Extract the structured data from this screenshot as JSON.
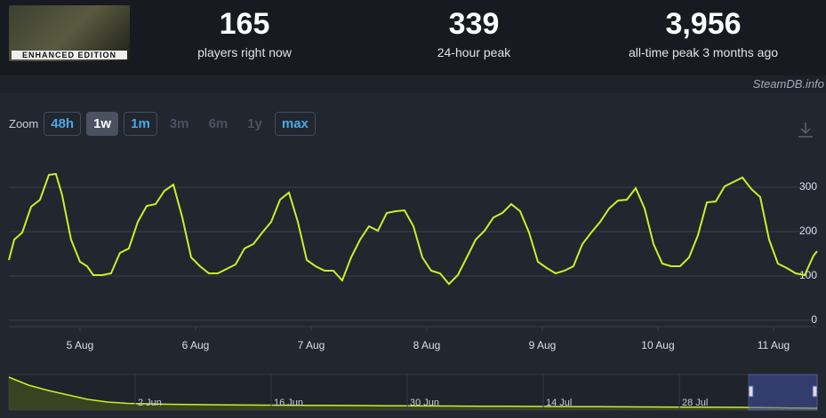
{
  "header": {
    "logo_text": "ENHANCED EDITION",
    "stats": [
      {
        "value": "165",
        "label": "players right now"
      },
      {
        "value": "339",
        "label": "24-hour peak"
      },
      {
        "value": "3,956",
        "label": "all-time peak 3 months ago"
      }
    ]
  },
  "watermark": "SteamDB.info",
  "zoom": {
    "label": "Zoom",
    "buttons": [
      "48h",
      "1w",
      "1m",
      "3m",
      "6m",
      "1y",
      "max"
    ]
  },
  "chart_data": {
    "type": "line",
    "color": "#c6f12a",
    "grid": true,
    "x": [
      4.385,
      4.431,
      4.5,
      4.577,
      4.654,
      4.731,
      4.792,
      4.846,
      4.923,
      5.0,
      5.062,
      5.115,
      5.192,
      5.269,
      5.346,
      5.423,
      5.5,
      5.577,
      5.654,
      5.731,
      5.808,
      5.885,
      5.962,
      6.038,
      6.115,
      6.192,
      6.269,
      6.346,
      6.423,
      6.5,
      6.577,
      6.654,
      6.731,
      6.808,
      6.885,
      6.962,
      7.038,
      7.115,
      7.192,
      7.269,
      7.346,
      7.423,
      7.5,
      7.577,
      7.654,
      7.731,
      7.808,
      7.885,
      7.962,
      8.038,
      8.115,
      8.192,
      8.269,
      8.346,
      8.423,
      8.5,
      8.577,
      8.654,
      8.731,
      8.808,
      8.885,
      8.962,
      9.038,
      9.115,
      9.192,
      9.269,
      9.346,
      9.423,
      9.5,
      9.577,
      9.654,
      9.731,
      9.808,
      9.885,
      9.962,
      10.038,
      10.115,
      10.192,
      10.269,
      10.346,
      10.423,
      10.5,
      10.577,
      10.654,
      10.731,
      10.808,
      10.885,
      10.962,
      11.038,
      11.115,
      11.192,
      11.269,
      11.346,
      11.377
    ],
    "values": [
      136,
      182,
      198,
      256,
      272,
      328,
      330,
      282,
      182,
      132,
      122,
      102,
      102,
      106,
      152,
      162,
      222,
      258,
      262,
      292,
      306,
      232,
      142,
      122,
      106,
      106,
      116,
      126,
      162,
      172,
      198,
      222,
      272,
      288,
      222,
      136,
      122,
      112,
      112,
      90,
      142,
      182,
      212,
      202,
      242,
      246,
      248,
      212,
      142,
      112,
      106,
      82,
      102,
      142,
      182,
      202,
      232,
      242,
      262,
      246,
      198,
      132,
      118,
      106,
      112,
      122,
      172,
      198,
      222,
      252,
      270,
      272,
      298,
      252,
      172,
      128,
      122,
      122,
      142,
      192,
      266,
      268,
      302,
      312,
      322,
      296,
      278,
      182,
      128,
      118,
      106,
      102,
      146,
      156
    ],
    "xlim": [
      4.385,
      11.377
    ],
    "xticks": [
      {
        "value": 5,
        "label": "5 Aug"
      },
      {
        "value": 6,
        "label": "6 Aug"
      },
      {
        "value": 7,
        "label": "7 Aug"
      },
      {
        "value": 8,
        "label": "8 Aug"
      },
      {
        "value": 9,
        "label": "9 Aug"
      },
      {
        "value": 10,
        "label": "10 Aug"
      },
      {
        "value": 11,
        "label": "11 Aug"
      }
    ],
    "ylim": [
      -14,
      382
    ],
    "yticks": [
      0,
      100,
      200,
      300
    ]
  },
  "navigator": {
    "labels": [
      "2 Jun",
      "16 Jun",
      "30 Jun",
      "14 Jul",
      "28 Jul"
    ],
    "values": [
      3700,
      2800,
      2200,
      1700,
      1200,
      900,
      750,
      700,
      650,
      620,
      600,
      580,
      560,
      550,
      540,
      530,
      520,
      510,
      500,
      480,
      470,
      460,
      450,
      440,
      430,
      420,
      410,
      400,
      390,
      380,
      370,
      360,
      350,
      340,
      330,
      320,
      310,
      300,
      280,
      250,
      220,
      200
    ]
  }
}
